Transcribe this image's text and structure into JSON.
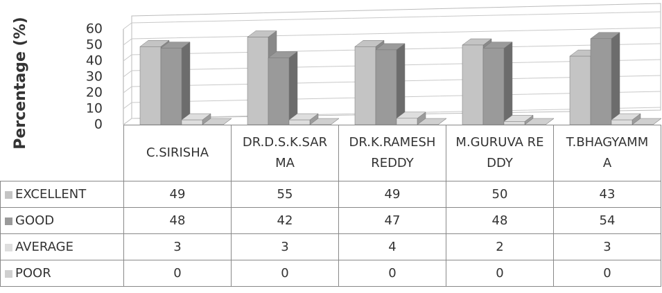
{
  "chart_data": {
    "type": "bar3d",
    "y_label": "Percentage (%)",
    "categories": [
      "C.SIRISHA",
      "DR.D.S.K.SARMA",
      "DR.K.RAMESH REDDY",
      "M.GURUVA REDDY",
      "T.BHAGYAMMA"
    ],
    "series": [
      {
        "name": "EXCELLENT",
        "color": "#c4c4c4",
        "values": [
          49,
          55,
          49,
          50,
          43
        ]
      },
      {
        "name": "GOOD",
        "color": "#9a9a9a",
        "values": [
          48,
          42,
          47,
          48,
          54
        ]
      },
      {
        "name": "AVERAGE",
        "color": "#dedede",
        "values": [
          3,
          3,
          4,
          2,
          3
        ]
      },
      {
        "name": "POOR",
        "color": "#d0d0d0",
        "values": [
          0,
          0,
          0,
          0,
          0
        ]
      }
    ],
    "ylim": [
      0,
      60
    ],
    "yticks": [
      0,
      10,
      20,
      30,
      40,
      50,
      60
    ],
    "grid": true
  }
}
